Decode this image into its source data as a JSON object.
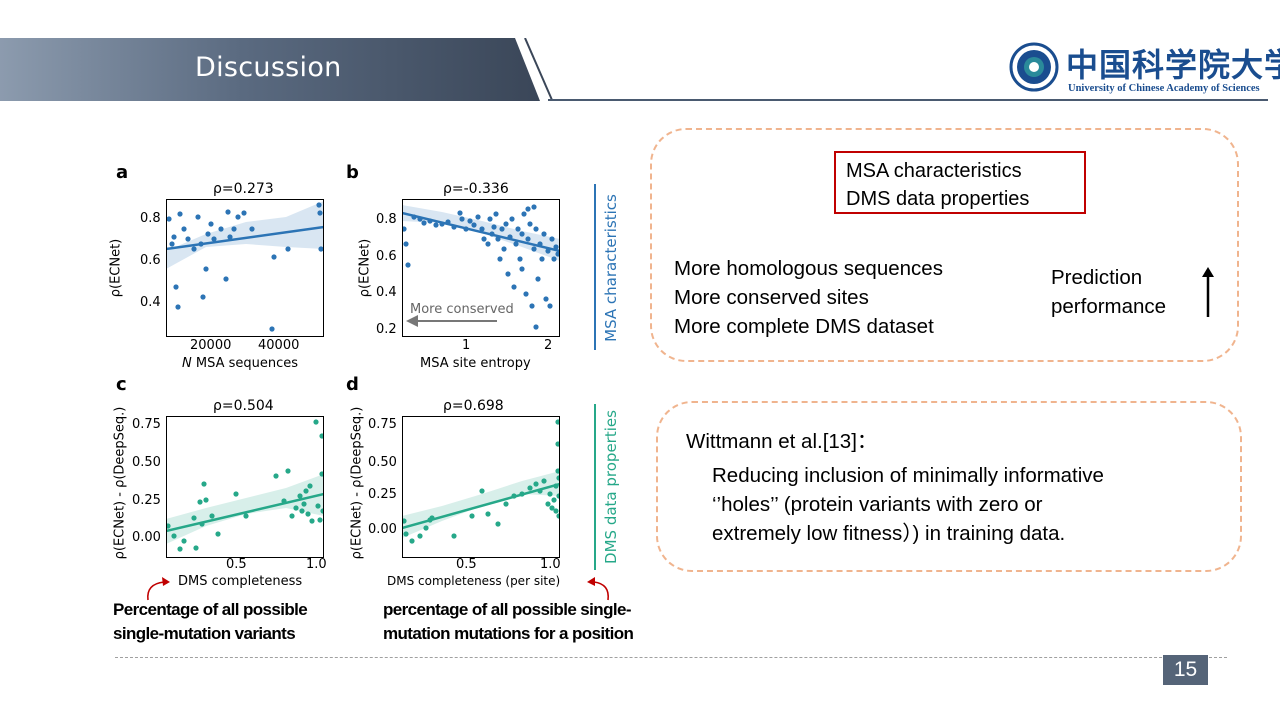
{
  "header": {
    "title": "Discussion"
  },
  "logo": {
    "name_cn": "中国科学院大学",
    "name_en": "University of Chinese Academy of Sciences"
  },
  "colors": {
    "header_dark": "#3f4c60",
    "header_light": "#8c9bae",
    "blue": "#2c74b5",
    "teal": "#26a889",
    "dashed_border": "#f0b48e",
    "red_box": "#c00000",
    "arrow_red": "#c00000",
    "page_badge": "#556478"
  },
  "figure": {
    "panel_a": {
      "letter": "a",
      "rho": "ρ=0.273",
      "ylabel": "ρ(ECNet)",
      "xlabel_italic": "N",
      "xlabel_rest": " MSA sequences",
      "xticks": [
        "20000",
        "40000"
      ],
      "yticks": [
        "0.8",
        "0.6",
        "0.4"
      ]
    },
    "panel_b": {
      "letter": "b",
      "rho": "ρ=-0.336",
      "ylabel": "ρ(ECNet)",
      "xlabel": "MSA site entropy",
      "xticks": [
        "1",
        "2"
      ],
      "yticks": [
        "0.8",
        "0.6",
        "0.4",
        "0.2"
      ],
      "annotation": "More conserved"
    },
    "panel_c": {
      "letter": "c",
      "rho": "ρ=0.504",
      "ylabel": "ρ(ECNet) - ρ(DeepSeq.)",
      "xlabel": "DMS completeness",
      "xticks": [
        "0.5",
        "1.0"
      ],
      "yticks": [
        "0.75",
        "0.50",
        "0.25",
        "0.00"
      ]
    },
    "panel_d": {
      "letter": "d",
      "rho": "ρ=0.698",
      "ylabel": "ρ(ECNet) - ρ(DeepSeq.)",
      "xlabel": "DMS completeness (per site)",
      "xticks": [
        "0.5",
        "1.0"
      ],
      "yticks": [
        "0.75",
        "0.50",
        "0.25",
        "0.00"
      ]
    },
    "side_labels": {
      "top": "MSA characteristics",
      "bottom": "DMS data properties"
    }
  },
  "captions": {
    "left": [
      "Percentage of all possible",
      "single-mutation variants"
    ],
    "right": [
      "percentage of all possible single-",
      "mutation mutations for a position"
    ]
  },
  "top_box": {
    "red_box_lines": [
      "MSA characteristics",
      "DMS data properties"
    ],
    "factors": [
      "More homologous sequences",
      "More conserved sites",
      "More complete DMS dataset"
    ],
    "outcome": [
      "Prediction",
      "performance"
    ]
  },
  "bottom_box": {
    "heading": "Wittmann et al.[13]：",
    "body": [
      "Reducing inclusion of minimally informative",
      "‘’holes’’ (protein variants with zero or",
      "extremely low fitness）) in training data."
    ]
  },
  "page_number": "15"
}
